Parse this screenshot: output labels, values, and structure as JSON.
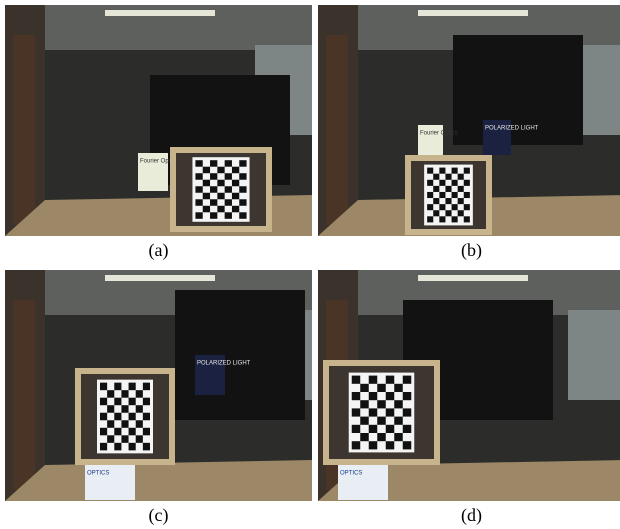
{
  "panels": [
    {
      "caption": "(a)",
      "books": [
        "Fourier Optics"
      ]
    },
    {
      "caption": "(b)",
      "books": [
        "Fourier Optics",
        "POLARIZED LIGHT"
      ]
    },
    {
      "caption": "(c)",
      "books": [
        "POLARIZED LIGHT",
        "OPTICS"
      ]
    },
    {
      "caption": "(d)",
      "books": [
        "OPTICS"
      ]
    }
  ]
}
